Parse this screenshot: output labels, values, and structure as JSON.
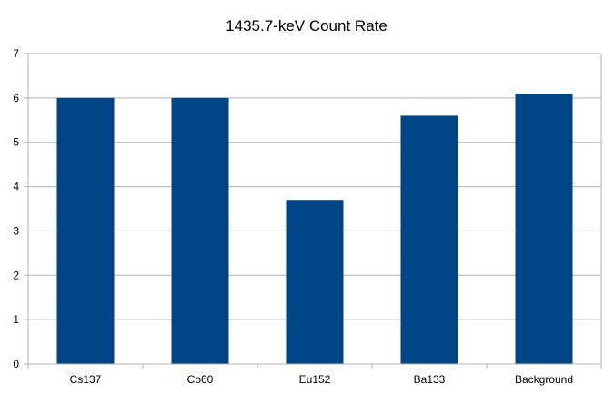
{
  "chart_data": {
    "type": "bar",
    "title": "1435.7-keV Count Rate",
    "xlabel": "",
    "ylabel": "",
    "categories": [
      "Cs137",
      "Co60",
      "Eu152",
      "Ba133",
      "Background"
    ],
    "values": [
      6.0,
      6.0,
      3.7,
      5.6,
      6.1
    ],
    "ylim": [
      0,
      7
    ],
    "yticks": [
      "0",
      "1",
      "2",
      "3",
      "4",
      "5",
      "6",
      "7"
    ],
    "grid": true,
    "legend": "none",
    "bar_color": "#004586"
  }
}
